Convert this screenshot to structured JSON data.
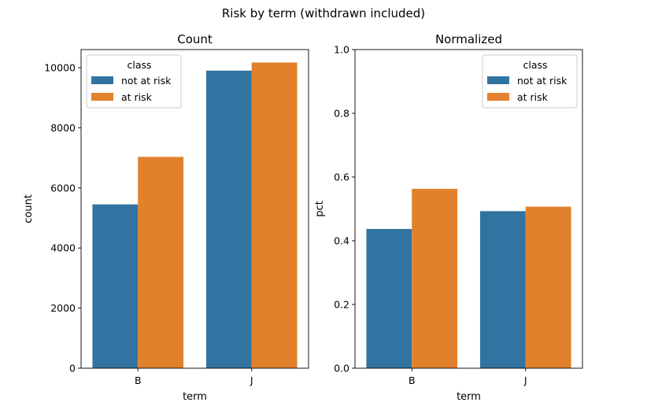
{
  "figure": {
    "suptitle": "Risk by term (withdrawn included)"
  },
  "colors": {
    "not_at_risk": "#3274a1",
    "at_risk": "#e1812c",
    "axis": "#000000"
  },
  "chart_data": [
    {
      "type": "bar",
      "title": "Count",
      "xlabel": "term",
      "ylabel": "count",
      "categories": [
        "B",
        "J"
      ],
      "ylim": [
        0,
        10600
      ],
      "yticks": [
        0,
        2000,
        4000,
        6000,
        8000,
        10000
      ],
      "ytick_labels": [
        "0",
        "2000",
        "4000",
        "6000",
        "8000",
        "10000"
      ],
      "series": [
        {
          "name": "not at risk",
          "values": [
            5450,
            9900
          ]
        },
        {
          "name": "at risk",
          "values": [
            7030,
            10170
          ]
        }
      ],
      "legend": {
        "title": "class",
        "entries": [
          "not at risk",
          "at risk"
        ],
        "placement": "top-left"
      }
    },
    {
      "type": "bar",
      "title": "Normalized",
      "xlabel": "term",
      "ylabel": "pct",
      "categories": [
        "B",
        "J"
      ],
      "ylim": [
        0,
        1.0
      ],
      "yticks": [
        0,
        0.2,
        0.4,
        0.6,
        0.8,
        1.0
      ],
      "ytick_labels": [
        "0.0",
        "0.2",
        "0.4",
        "0.6",
        "0.8",
        "1.0"
      ],
      "series": [
        {
          "name": "not at risk",
          "values": [
            0.437,
            0.493
          ]
        },
        {
          "name": "at risk",
          "values": [
            0.563,
            0.507
          ]
        }
      ],
      "legend": {
        "title": "class",
        "entries": [
          "not at risk",
          "at risk"
        ],
        "placement": "top-right"
      }
    }
  ]
}
